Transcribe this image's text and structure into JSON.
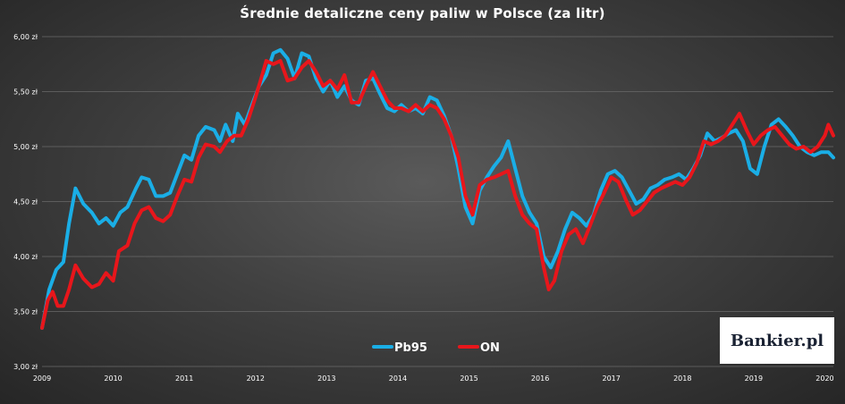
{
  "chart_data": {
    "type": "line",
    "title": "Średnie detaliczne ceny paliw w Polsce (za litr)",
    "xlabel": "",
    "ylabel": "",
    "xlim": [
      2009.0,
      2020.12
    ],
    "ylim": [
      3.0,
      6.0
    ],
    "x_ticks": [
      "2009",
      "2010",
      "2011",
      "2012",
      "2013",
      "2014",
      "2015",
      "2016",
      "2017",
      "2018",
      "2019",
      "2020"
    ],
    "y_ticks": [
      {
        "value": 3.0,
        "label": "3,00 zł"
      },
      {
        "value": 3.5,
        "label": "3,50 zł"
      },
      {
        "value": 4.0,
        "label": "4,00 zł"
      },
      {
        "value": 4.5,
        "label": "4,50 zł"
      },
      {
        "value": 5.0,
        "label": "5,00 zł"
      },
      {
        "value": 5.5,
        "label": "5,50 zł"
      },
      {
        "value": 6.0,
        "label": "6,00 zł"
      }
    ],
    "grid": true,
    "legend_position": "bottom-center",
    "series": [
      {
        "name": "Pb95",
        "color": "#1aaee6",
        "points": [
          [
            2009.0,
            3.35
          ],
          [
            2009.1,
            3.7
          ],
          [
            2009.2,
            3.88
          ],
          [
            2009.3,
            3.95
          ],
          [
            2009.38,
            4.3
          ],
          [
            2009.47,
            4.62
          ],
          [
            2009.58,
            4.48
          ],
          [
            2009.7,
            4.4
          ],
          [
            2009.8,
            4.3
          ],
          [
            2009.9,
            4.35
          ],
          [
            2010.0,
            4.28
          ],
          [
            2010.1,
            4.4
          ],
          [
            2010.2,
            4.45
          ],
          [
            2010.32,
            4.62
          ],
          [
            2010.4,
            4.72
          ],
          [
            2010.5,
            4.7
          ],
          [
            2010.6,
            4.55
          ],
          [
            2010.7,
            4.55
          ],
          [
            2010.8,
            4.58
          ],
          [
            2010.9,
            4.75
          ],
          [
            2011.0,
            4.92
          ],
          [
            2011.1,
            4.88
          ],
          [
            2011.2,
            5.1
          ],
          [
            2011.3,
            5.18
          ],
          [
            2011.42,
            5.15
          ],
          [
            2011.5,
            5.05
          ],
          [
            2011.58,
            5.2
          ],
          [
            2011.68,
            5.05
          ],
          [
            2011.75,
            5.3
          ],
          [
            2011.85,
            5.2
          ],
          [
            2011.95,
            5.38
          ],
          [
            2012.05,
            5.55
          ],
          [
            2012.15,
            5.65
          ],
          [
            2012.25,
            5.85
          ],
          [
            2012.35,
            5.88
          ],
          [
            2012.45,
            5.8
          ],
          [
            2012.55,
            5.62
          ],
          [
            2012.65,
            5.85
          ],
          [
            2012.75,
            5.82
          ],
          [
            2012.85,
            5.62
          ],
          [
            2012.95,
            5.5
          ],
          [
            2013.05,
            5.6
          ],
          [
            2013.15,
            5.45
          ],
          [
            2013.25,
            5.55
          ],
          [
            2013.35,
            5.42
          ],
          [
            2013.45,
            5.38
          ],
          [
            2013.55,
            5.6
          ],
          [
            2013.65,
            5.62
          ],
          [
            2013.75,
            5.48
          ],
          [
            2013.85,
            5.35
          ],
          [
            2013.95,
            5.32
          ],
          [
            2014.05,
            5.38
          ],
          [
            2014.15,
            5.32
          ],
          [
            2014.25,
            5.35
          ],
          [
            2014.35,
            5.3
          ],
          [
            2014.45,
            5.45
          ],
          [
            2014.55,
            5.42
          ],
          [
            2014.65,
            5.28
          ],
          [
            2014.75,
            5.1
          ],
          [
            2014.85,
            4.8
          ],
          [
            2014.95,
            4.45
          ],
          [
            2015.05,
            4.3
          ],
          [
            2015.15,
            4.6
          ],
          [
            2015.25,
            4.72
          ],
          [
            2015.35,
            4.82
          ],
          [
            2015.45,
            4.9
          ],
          [
            2015.55,
            5.05
          ],
          [
            2015.65,
            4.8
          ],
          [
            2015.75,
            4.55
          ],
          [
            2015.85,
            4.4
          ],
          [
            2015.95,
            4.3
          ],
          [
            2016.05,
            4.0
          ],
          [
            2016.15,
            3.9
          ],
          [
            2016.25,
            4.05
          ],
          [
            2016.35,
            4.25
          ],
          [
            2016.45,
            4.4
          ],
          [
            2016.55,
            4.35
          ],
          [
            2016.65,
            4.28
          ],
          [
            2016.75,
            4.38
          ],
          [
            2016.85,
            4.6
          ],
          [
            2016.95,
            4.75
          ],
          [
            2017.05,
            4.78
          ],
          [
            2017.15,
            4.72
          ],
          [
            2017.25,
            4.6
          ],
          [
            2017.35,
            4.48
          ],
          [
            2017.45,
            4.52
          ],
          [
            2017.55,
            4.62
          ],
          [
            2017.65,
            4.65
          ],
          [
            2017.75,
            4.7
          ],
          [
            2017.85,
            4.72
          ],
          [
            2017.95,
            4.75
          ],
          [
            2018.05,
            4.7
          ],
          [
            2018.15,
            4.8
          ],
          [
            2018.25,
            4.92
          ],
          [
            2018.35,
            5.12
          ],
          [
            2018.45,
            5.05
          ],
          [
            2018.55,
            5.08
          ],
          [
            2018.65,
            5.12
          ],
          [
            2018.75,
            5.15
          ],
          [
            2018.85,
            5.05
          ],
          [
            2018.95,
            4.8
          ],
          [
            2019.05,
            4.75
          ],
          [
            2019.15,
            5.0
          ],
          [
            2019.25,
            5.2
          ],
          [
            2019.35,
            5.25
          ],
          [
            2019.45,
            5.18
          ],
          [
            2019.55,
            5.1
          ],
          [
            2019.65,
            5.0
          ],
          [
            2019.75,
            4.95
          ],
          [
            2019.85,
            4.92
          ],
          [
            2019.95,
            4.95
          ],
          [
            2020.05,
            4.95
          ],
          [
            2020.12,
            4.9
          ]
        ]
      },
      {
        "name": "ON",
        "color": "#e8161b",
        "points": [
          [
            2009.0,
            3.35
          ],
          [
            2009.08,
            3.6
          ],
          [
            2009.15,
            3.68
          ],
          [
            2009.22,
            3.55
          ],
          [
            2009.3,
            3.55
          ],
          [
            2009.38,
            3.7
          ],
          [
            2009.47,
            3.92
          ],
          [
            2009.58,
            3.8
          ],
          [
            2009.7,
            3.72
          ],
          [
            2009.8,
            3.75
          ],
          [
            2009.9,
            3.85
          ],
          [
            2010.0,
            3.78
          ],
          [
            2010.08,
            4.05
          ],
          [
            2010.2,
            4.1
          ],
          [
            2010.3,
            4.3
          ],
          [
            2010.4,
            4.42
          ],
          [
            2010.5,
            4.45
          ],
          [
            2010.6,
            4.35
          ],
          [
            2010.7,
            4.32
          ],
          [
            2010.8,
            4.38
          ],
          [
            2010.9,
            4.55
          ],
          [
            2011.0,
            4.7
          ],
          [
            2011.1,
            4.68
          ],
          [
            2011.2,
            4.9
          ],
          [
            2011.3,
            5.02
          ],
          [
            2011.42,
            5.0
          ],
          [
            2011.5,
            4.95
          ],
          [
            2011.6,
            5.05
          ],
          [
            2011.7,
            5.1
          ],
          [
            2011.8,
            5.1
          ],
          [
            2011.9,
            5.25
          ],
          [
            2012.0,
            5.45
          ],
          [
            2012.08,
            5.62
          ],
          [
            2012.15,
            5.78
          ],
          [
            2012.25,
            5.75
          ],
          [
            2012.35,
            5.78
          ],
          [
            2012.45,
            5.6
          ],
          [
            2012.55,
            5.62
          ],
          [
            2012.65,
            5.72
          ],
          [
            2012.75,
            5.78
          ],
          [
            2012.85,
            5.68
          ],
          [
            2012.95,
            5.55
          ],
          [
            2013.05,
            5.6
          ],
          [
            2013.15,
            5.52
          ],
          [
            2013.25,
            5.65
          ],
          [
            2013.35,
            5.4
          ],
          [
            2013.45,
            5.4
          ],
          [
            2013.55,
            5.55
          ],
          [
            2013.65,
            5.68
          ],
          [
            2013.75,
            5.55
          ],
          [
            2013.85,
            5.42
          ],
          [
            2013.95,
            5.35
          ],
          [
            2014.05,
            5.35
          ],
          [
            2014.15,
            5.32
          ],
          [
            2014.25,
            5.38
          ],
          [
            2014.35,
            5.32
          ],
          [
            2014.45,
            5.38
          ],
          [
            2014.55,
            5.35
          ],
          [
            2014.65,
            5.25
          ],
          [
            2014.75,
            5.1
          ],
          [
            2014.85,
            4.9
          ],
          [
            2014.95,
            4.55
          ],
          [
            2015.05,
            4.38
          ],
          [
            2015.15,
            4.65
          ],
          [
            2015.25,
            4.7
          ],
          [
            2015.35,
            4.72
          ],
          [
            2015.45,
            4.75
          ],
          [
            2015.55,
            4.78
          ],
          [
            2015.65,
            4.55
          ],
          [
            2015.75,
            4.38
          ],
          [
            2015.85,
            4.3
          ],
          [
            2015.95,
            4.25
          ],
          [
            2016.05,
            3.9
          ],
          [
            2016.12,
            3.7
          ],
          [
            2016.2,
            3.78
          ],
          [
            2016.3,
            4.05
          ],
          [
            2016.4,
            4.2
          ],
          [
            2016.5,
            4.25
          ],
          [
            2016.6,
            4.12
          ],
          [
            2016.7,
            4.28
          ],
          [
            2016.8,
            4.45
          ],
          [
            2016.9,
            4.58
          ],
          [
            2017.0,
            4.72
          ],
          [
            2017.1,
            4.68
          ],
          [
            2017.2,
            4.52
          ],
          [
            2017.3,
            4.38
          ],
          [
            2017.4,
            4.42
          ],
          [
            2017.5,
            4.5
          ],
          [
            2017.6,
            4.58
          ],
          [
            2017.7,
            4.62
          ],
          [
            2017.8,
            4.65
          ],
          [
            2017.9,
            4.68
          ],
          [
            2018.0,
            4.65
          ],
          [
            2018.1,
            4.72
          ],
          [
            2018.2,
            4.85
          ],
          [
            2018.3,
            5.05
          ],
          [
            2018.4,
            5.02
          ],
          [
            2018.5,
            5.05
          ],
          [
            2018.6,
            5.1
          ],
          [
            2018.7,
            5.2
          ],
          [
            2018.8,
            5.3
          ],
          [
            2018.9,
            5.15
          ],
          [
            2019.0,
            5.02
          ],
          [
            2019.1,
            5.1
          ],
          [
            2019.2,
            5.15
          ],
          [
            2019.3,
            5.18
          ],
          [
            2019.4,
            5.1
          ],
          [
            2019.5,
            5.02
          ],
          [
            2019.6,
            4.98
          ],
          [
            2019.7,
            5.0
          ],
          [
            2019.8,
            4.95
          ],
          [
            2019.9,
            5.0
          ],
          [
            2020.0,
            5.1
          ],
          [
            2020.05,
            5.2
          ],
          [
            2020.12,
            5.1
          ]
        ]
      }
    ]
  },
  "logo": {
    "text": "Bankier.pl"
  }
}
